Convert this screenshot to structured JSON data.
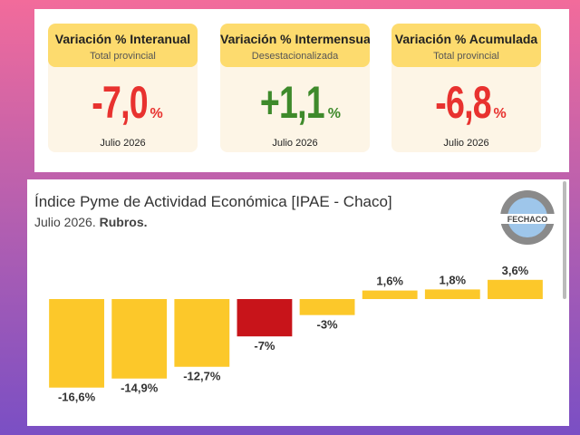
{
  "cards": [
    {
      "title": "Variación % Interanual",
      "subtitle": "Total provincial",
      "value": "-7,0",
      "unit": "%",
      "date": "Julio 2026",
      "color": "#e8322f"
    },
    {
      "title": "Variación % Intermensual",
      "subtitle": "Desestacionalizada",
      "value": "+1,1",
      "unit": "%",
      "date": "Julio 2026",
      "color": "#3e8a2b"
    },
    {
      "title": "Variación % Acumulada",
      "subtitle": "Total provincial",
      "value": "-6,8",
      "unit": "%",
      "date": "Julio 2026",
      "color": "#e8322f"
    }
  ],
  "logo": "FECHACO",
  "chart_data": {
    "type": "bar",
    "title": "Índice Pyme de Actividad Económica [IPAE - Chaco]",
    "subtitle": "Julio 2026.",
    "subtitle_bold": "Rubros.",
    "categories": [
      null,
      null,
      null,
      null,
      null,
      null,
      null,
      null
    ],
    "values": [
      -16.6,
      -14.9,
      -12.7,
      -7,
      -3,
      1.6,
      1.8,
      3.6
    ],
    "value_labels": [
      "-16,6%",
      "-14,9%",
      "-12,7%",
      "-7%",
      "-3%",
      "1,6%",
      "1,8%",
      "3,6%"
    ],
    "colors": [
      "#fcc82a",
      "#fcc82a",
      "#fcc82a",
      "#c8141a",
      "#fcc82a",
      "#fcc82a",
      "#fcc82a",
      "#fcc82a"
    ],
    "ylim": [
      -17.5,
      4.5
    ]
  }
}
